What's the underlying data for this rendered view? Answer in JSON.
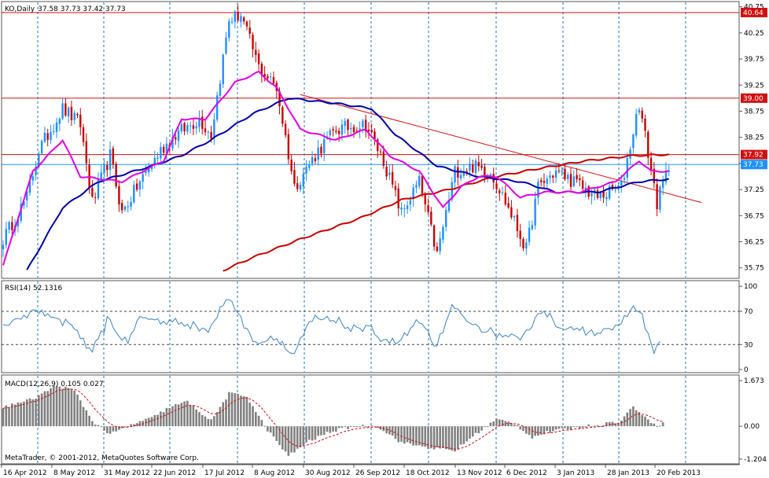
{
  "colors": {
    "background": "#ffffff",
    "grid": "#1e73be",
    "bull": "#1e90ff",
    "bear": "#c80000",
    "ma_fast": "#e100e1",
    "ma_mid": "#0000aa",
    "ma_slow": "#c80000",
    "hline": "#d01010",
    "rsi": "#3b82c4",
    "macd_hist": "#808080",
    "macd_signal": "#d01010",
    "price_tag_red": "#d01010",
    "price_tag_blue": "#1e90ff"
  },
  "header": {
    "symbol": "KO,Daily",
    "ohlc": "37.58 37.73 37.42 37.73"
  },
  "rsi_panel": {
    "title": "RSI(14) 52.1316"
  },
  "macd_panel": {
    "title": "MACD(12,26,9) 0.105 0.027"
  },
  "footer": {
    "copyright": "MetaTrader, © 2001-2012, MetaQuotes Software Corp."
  },
  "chart_data": {
    "type": "candlestick",
    "symbol": "KO",
    "timeframe": "Daily",
    "price_axis": {
      "min": 35.75,
      "max": 40.75,
      "ticks": [
        "40.75",
        "40.25",
        "39.75",
        "39.25",
        "38.75",
        "38.25",
        "37.75",
        "37.25",
        "36.75",
        "36.25",
        "35.75"
      ]
    },
    "x_tick_labels": [
      "16 Apr 2012",
      "8 May 2012",
      "31 May 2012",
      "22 Jun 2012",
      "17 Jul 2012",
      "8 Aug 2012",
      "30 Aug 2012",
      "26 Sep 2012",
      "18 Oct 2012",
      "13 Nov 2012",
      "6 Dec 2012",
      "3 Jan 2013",
      "28 Jan 2013",
      "20 Feb 2013"
    ],
    "horizontal_lines": [
      {
        "price": 40.64,
        "label": "40.64",
        "color": "#d01010"
      },
      {
        "price": 39.0,
        "label": "39.00",
        "color": "#d01010"
      },
      {
        "price": 37.92,
        "label": "37.92",
        "color": "#d01010"
      },
      {
        "price": 37.73,
        "label": "37.73",
        "color": "#1e90ff"
      }
    ],
    "trendline": {
      "start": {
        "bar": 100,
        "price": 39.07
      },
      "end": {
        "bar": 235,
        "price": 37.0
      }
    },
    "price_anchors": [
      [
        0,
        36.3
      ],
      [
        8,
        37.1
      ],
      [
        12,
        38.0
      ],
      [
        20,
        38.8
      ],
      [
        26,
        38.5
      ],
      [
        30,
        37.0
      ],
      [
        36,
        37.9
      ],
      [
        40,
        36.8
      ],
      [
        46,
        37.4
      ],
      [
        53,
        38.0
      ],
      [
        58,
        38.3
      ],
      [
        66,
        38.6
      ],
      [
        70,
        38.3
      ],
      [
        76,
        40.5
      ],
      [
        80,
        40.6
      ],
      [
        86,
        39.6
      ],
      [
        92,
        39.2
      ],
      [
        98,
        37.3
      ],
      [
        106,
        38.0
      ],
      [
        112,
        38.4
      ],
      [
        122,
        38.5
      ],
      [
        128,
        37.8
      ],
      [
        134,
        36.8
      ],
      [
        140,
        37.4
      ],
      [
        146,
        36.0
      ],
      [
        152,
        37.6
      ],
      [
        158,
        37.7
      ],
      [
        164,
        37.6
      ],
      [
        170,
        36.9
      ],
      [
        176,
        36.1
      ],
      [
        180,
        37.3
      ],
      [
        186,
        37.6
      ],
      [
        192,
        37.4
      ],
      [
        200,
        37.1
      ],
      [
        208,
        37.3
      ],
      [
        214,
        38.9
      ],
      [
        220,
        37.0
      ],
      [
        224,
        37.7
      ]
    ],
    "ma_fast_anchors": [
      [
        0,
        35.8
      ],
      [
        10,
        37.6
      ],
      [
        20,
        38.2
      ],
      [
        26,
        37.5
      ],
      [
        40,
        37.4
      ],
      [
        54,
        37.8
      ],
      [
        60,
        38.6
      ],
      [
        68,
        38.6
      ],
      [
        78,
        39.3
      ],
      [
        86,
        39.5
      ],
      [
        92,
        39.2
      ],
      [
        100,
        38.4
      ],
      [
        112,
        38.2
      ],
      [
        122,
        38.4
      ],
      [
        130,
        37.9
      ],
      [
        140,
        37.6
      ],
      [
        148,
        36.9
      ],
      [
        154,
        37.3
      ],
      [
        160,
        37.5
      ],
      [
        166,
        37.5
      ],
      [
        174,
        37.1
      ],
      [
        182,
        37.2
      ],
      [
        194,
        37.2
      ],
      [
        206,
        37.4
      ],
      [
        214,
        37.8
      ],
      [
        218,
        37.6
      ],
      [
        224,
        37.6
      ]
    ],
    "ma_mid_anchors": [
      [
        8,
        35.7
      ],
      [
        20,
        36.9
      ],
      [
        32,
        37.4
      ],
      [
        50,
        37.7
      ],
      [
        60,
        37.9
      ],
      [
        70,
        38.2
      ],
      [
        84,
        38.7
      ],
      [
        96,
        39.0
      ],
      [
        112,
        38.9
      ],
      [
        124,
        38.8
      ],
      [
        132,
        38.3
      ],
      [
        146,
        37.7
      ],
      [
        160,
        37.5
      ],
      [
        174,
        37.4
      ],
      [
        186,
        37.2
      ],
      [
        200,
        37.2
      ],
      [
        214,
        37.4
      ],
      [
        224,
        37.45
      ]
    ],
    "ma_slow_anchors": [
      [
        74,
        35.7
      ],
      [
        84,
        35.95
      ],
      [
        100,
        36.3
      ],
      [
        120,
        36.7
      ],
      [
        134,
        37.05
      ],
      [
        150,
        37.25
      ],
      [
        166,
        37.5
      ],
      [
        180,
        37.65
      ],
      [
        196,
        37.8
      ],
      [
        212,
        37.9
      ],
      [
        224,
        37.92
      ]
    ],
    "rsi": {
      "levels": [
        70,
        30
      ],
      "scale_labels": [
        "100",
        "70",
        "30",
        "0"
      ],
      "current": 52.1316
    },
    "macd": {
      "scale_labels": [
        "1.673",
        "0.00",
        "-1.204"
      ],
      "macd": 0.105,
      "signal": 0.027
    }
  }
}
